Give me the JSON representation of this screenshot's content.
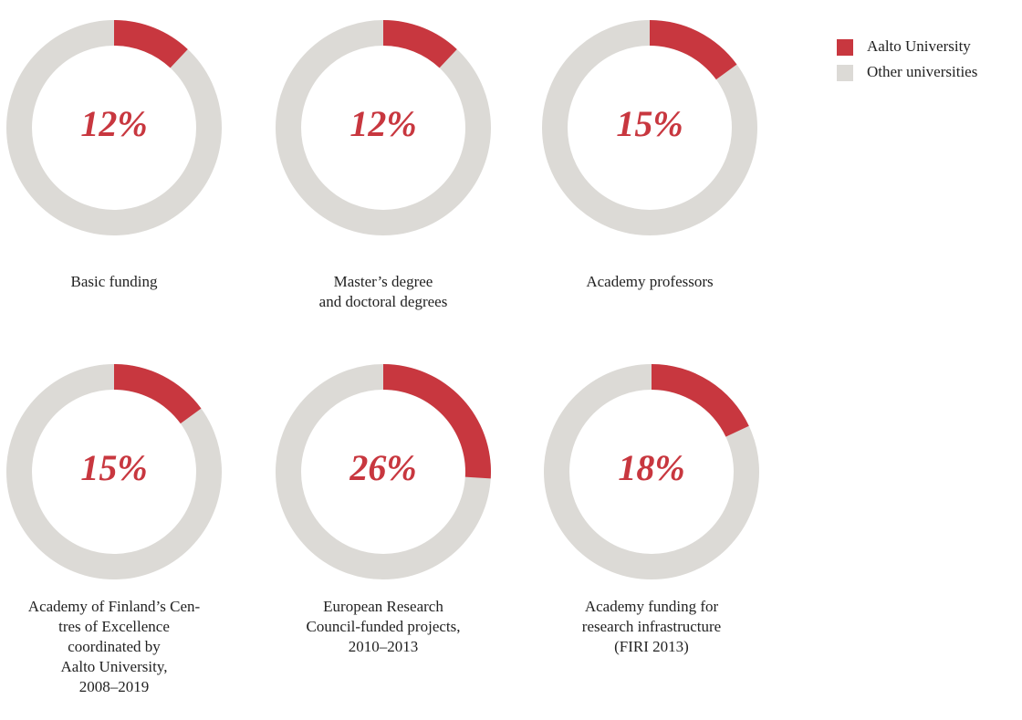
{
  "legend": [
    {
      "name": "Aalto University",
      "color": "#c8373f"
    },
    {
      "name": "Other universities",
      "color": "#dcdad6"
    }
  ],
  "chart_data": [
    {
      "type": "donut",
      "label": "Basic funding",
      "values": [
        12
      ],
      "value_labels": [
        "12%"
      ]
    },
    {
      "type": "donut",
      "label": "Master’s degree\nand doctoral degrees",
      "values": [
        12
      ],
      "value_labels": [
        "12%"
      ]
    },
    {
      "type": "donut",
      "label": "Academy professors",
      "values": [
        15
      ],
      "value_labels": [
        "15%"
      ]
    },
    {
      "type": "donut",
      "label": "Academy of Finland’s Cen-\ntres of Excellence\ncoordinated by\nAalto University,\n2008–2019",
      "values": [
        15
      ],
      "value_labels": [
        "15%"
      ]
    },
    {
      "type": "donut",
      "label": "European Research\nCouncil-funded projects,\n2010–2013",
      "values": [
        26
      ],
      "value_labels": [
        "26%"
      ]
    },
    {
      "type": "donut",
      "label": "Academy funding for\nresearch infrastructure\n(FIRI 2013)",
      "values": [
        18
      ],
      "value_labels": [
        "18%"
      ]
    }
  ]
}
